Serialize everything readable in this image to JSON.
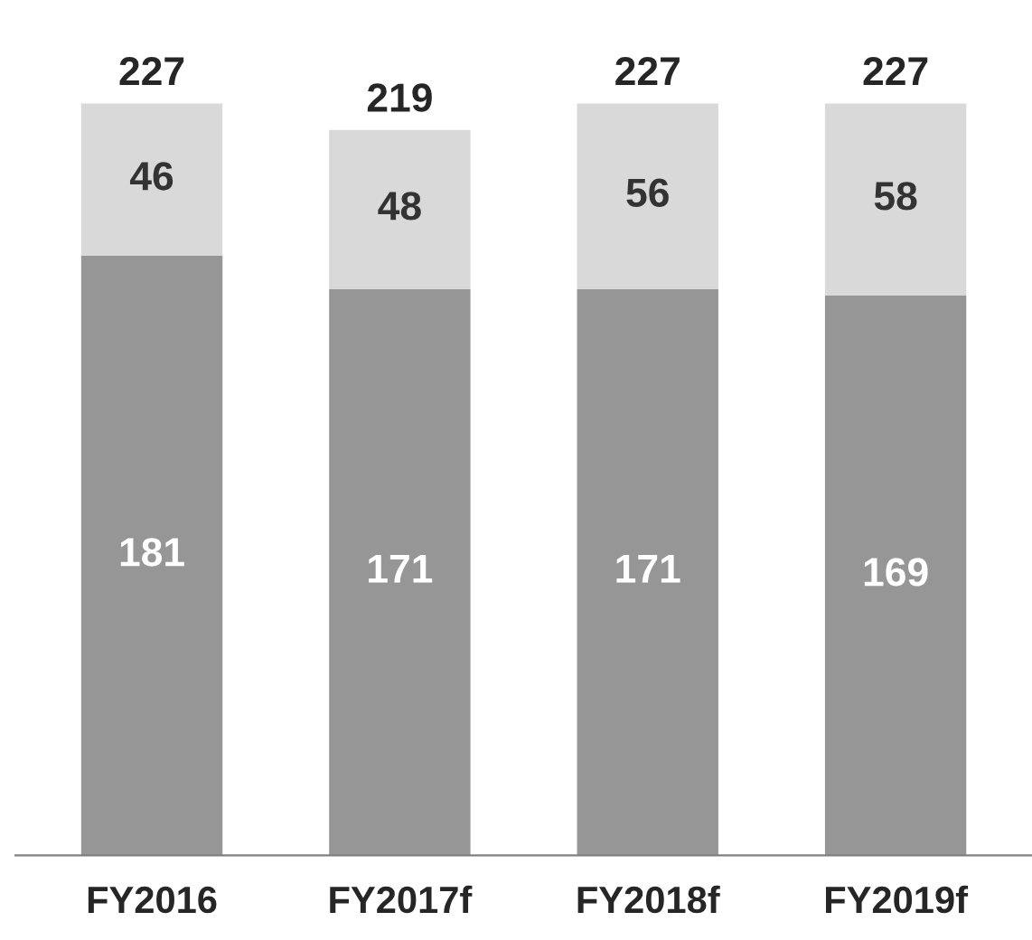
{
  "chart_data": {
    "type": "bar",
    "stacked": true,
    "categories": [
      "FY2016",
      "FY2017f",
      "FY2018f",
      "FY2019f"
    ],
    "series": [
      {
        "color": "#969696",
        "values": [
          181,
          171,
          171,
          169
        ]
      },
      {
        "color": "#d9d9d9",
        "values": [
          46,
          48,
          56,
          58
        ]
      }
    ],
    "data_labels": true,
    "totals": [
      "227",
      "219",
      "227",
      "227"
    ],
    "legend": false,
    "grid": false
  }
}
